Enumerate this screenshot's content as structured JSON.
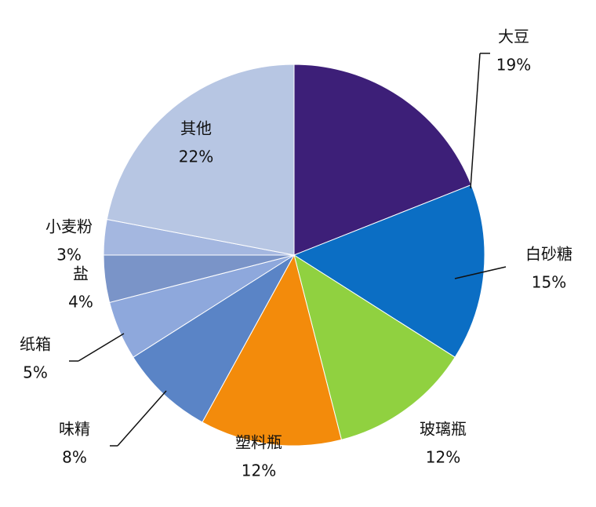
{
  "chart_data": {
    "type": "pie",
    "categories": [
      "大豆",
      "白砂糖",
      "玻璃瓶",
      "塑料瓶",
      "味精",
      "纸箱",
      "盐",
      "小麦粉",
      "其他"
    ],
    "values": [
      19,
      15,
      12,
      12,
      8,
      5,
      4,
      3,
      22
    ],
    "value_labels": [
      "19%",
      "15%",
      "12%",
      "12%",
      "8%",
      "5%",
      "4%",
      "3%",
      "22%"
    ],
    "colors": [
      "#3d1f78",
      "#0b6ec4",
      "#90d140",
      "#f38b0b",
      "#5a84c6",
      "#8ea8dc",
      "#7a94c8",
      "#a4b7e0",
      "#b7c6e3"
    ]
  }
}
